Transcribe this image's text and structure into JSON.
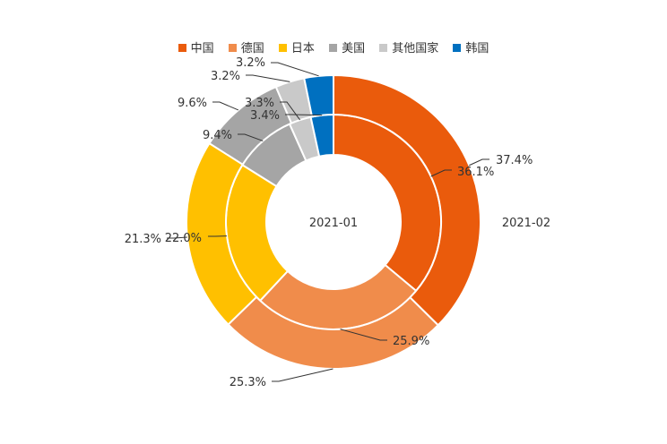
{
  "chart_data": {
    "type": "pie",
    "variant": "nested-donut",
    "legend": {
      "position": "top"
    },
    "categories": [
      "中国",
      "德国",
      "日本",
      "美国",
      "其他国家",
      "韩国"
    ],
    "colors": [
      "#EA5B0C",
      "#F08C4B",
      "#FFC000",
      "#A5A5A5",
      "#C9C9C9",
      "#0070C0"
    ],
    "series": [
      {
        "name": "2021-01",
        "ring": "inner",
        "values": [
          36.1,
          25.9,
          22.0,
          9.4,
          3.3,
          3.4
        ],
        "labels": [
          "36.1%",
          "25.9%",
          "22.0%",
          "9.4%",
          "3.3%",
          "3.4%"
        ]
      },
      {
        "name": "2021-02",
        "ring": "outer",
        "values": [
          37.4,
          25.3,
          21.3,
          9.6,
          3.2,
          3.2
        ],
        "labels": [
          "37.4%",
          "25.3%",
          "21.3%",
          "9.6%",
          "3.2%",
          "3.2%"
        ]
      }
    ]
  }
}
